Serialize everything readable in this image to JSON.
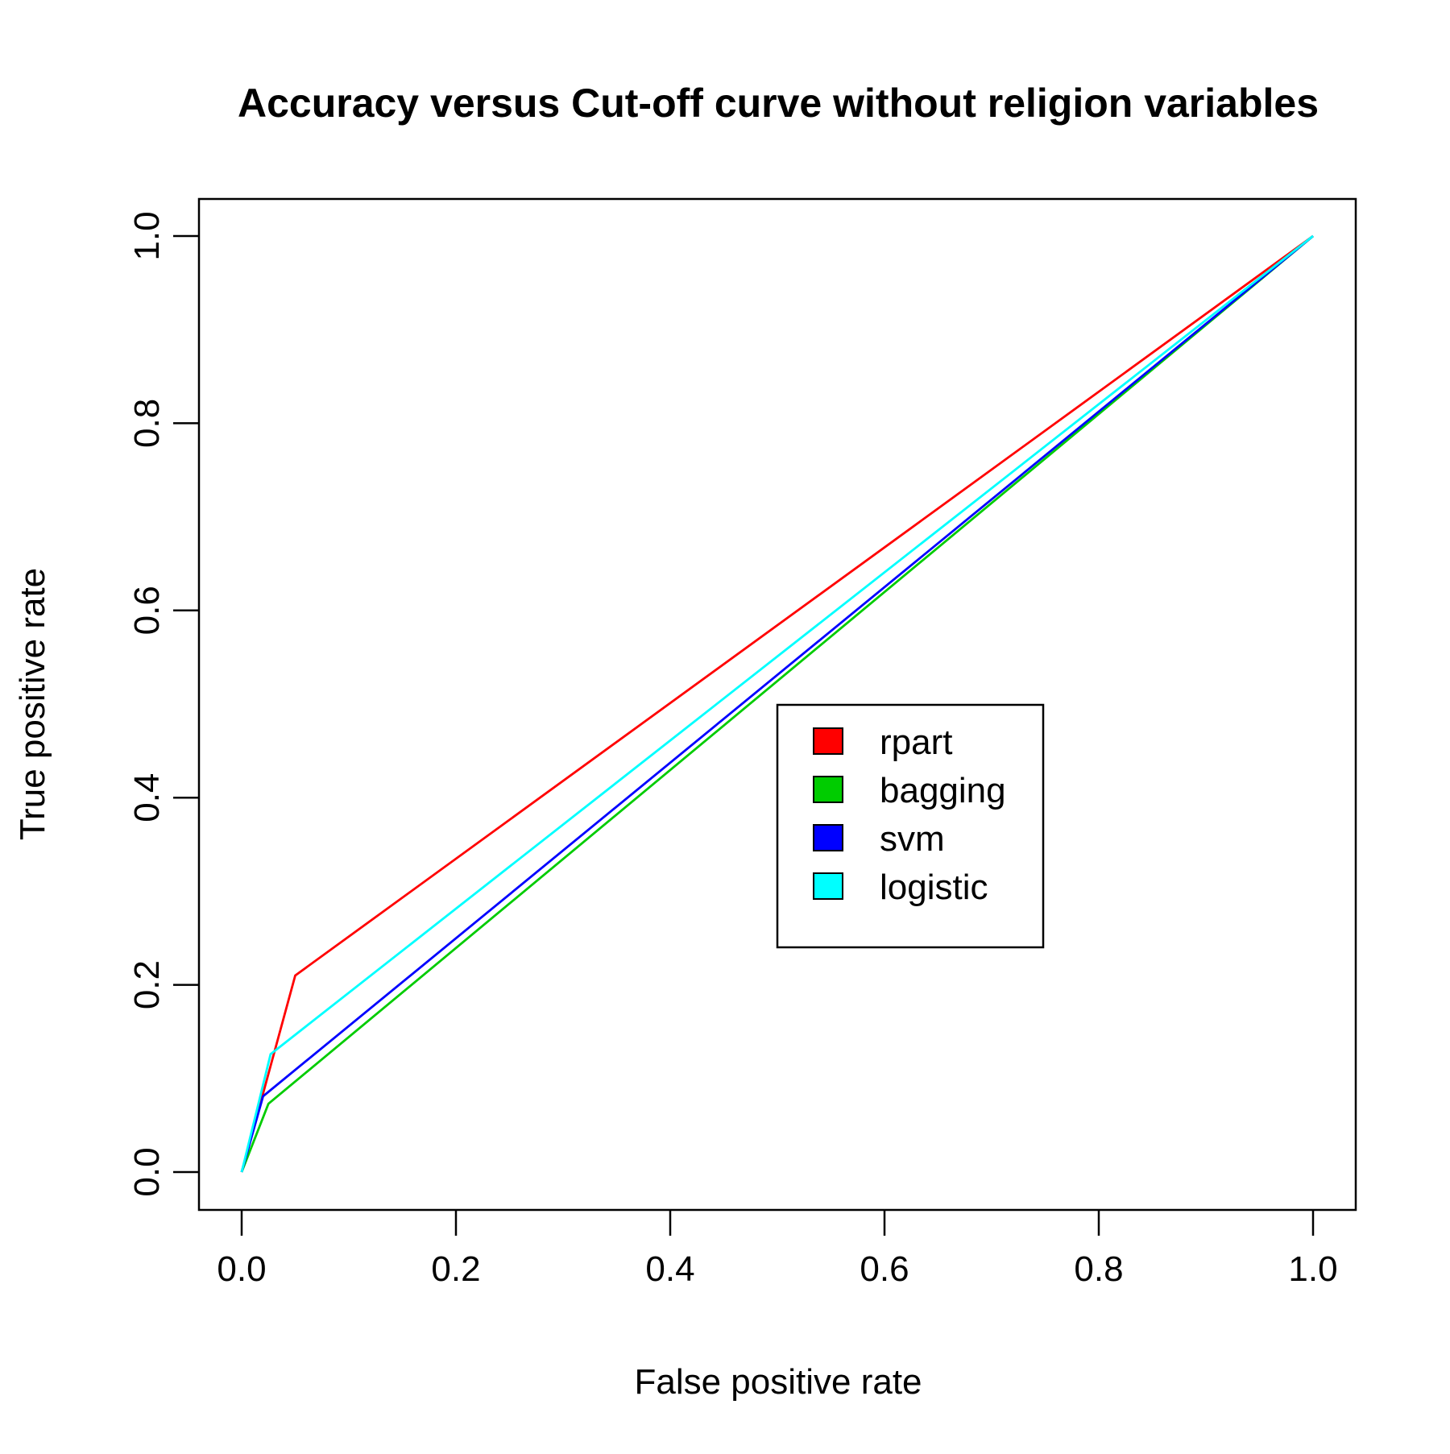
{
  "chart_data": {
    "type": "line",
    "title": "Accuracy versus Cut-off curve without religion variables",
    "xlabel": "False positive rate",
    "ylabel": "True positive rate",
    "xlim": [
      0.0,
      1.0
    ],
    "ylim": [
      0.0,
      1.0
    ],
    "x_ticks": [
      "0.0",
      "0.2",
      "0.4",
      "0.6",
      "0.8",
      "1.0"
    ],
    "y_ticks": [
      "0.0",
      "0.2",
      "0.4",
      "0.6",
      "0.8",
      "1.0"
    ],
    "grid": false,
    "legend_position": "center-right",
    "series": [
      {
        "name": "rpart",
        "color": "#ff0000",
        "x": [
          0.0,
          0.05,
          1.0
        ],
        "y": [
          0.0,
          0.21,
          1.0
        ]
      },
      {
        "name": "bagging",
        "color": "#00cc00",
        "x": [
          0.0,
          0.025,
          1.0
        ],
        "y": [
          0.0,
          0.073,
          1.0
        ]
      },
      {
        "name": "svm",
        "color": "#0000ff",
        "x": [
          0.0,
          0.02,
          1.0
        ],
        "y": [
          0.0,
          0.081,
          1.0
        ]
      },
      {
        "name": "logistic",
        "color": "#00ffff",
        "x": [
          0.0,
          0.027,
          1.0
        ],
        "y": [
          0.0,
          0.126,
          1.0
        ]
      }
    ]
  }
}
